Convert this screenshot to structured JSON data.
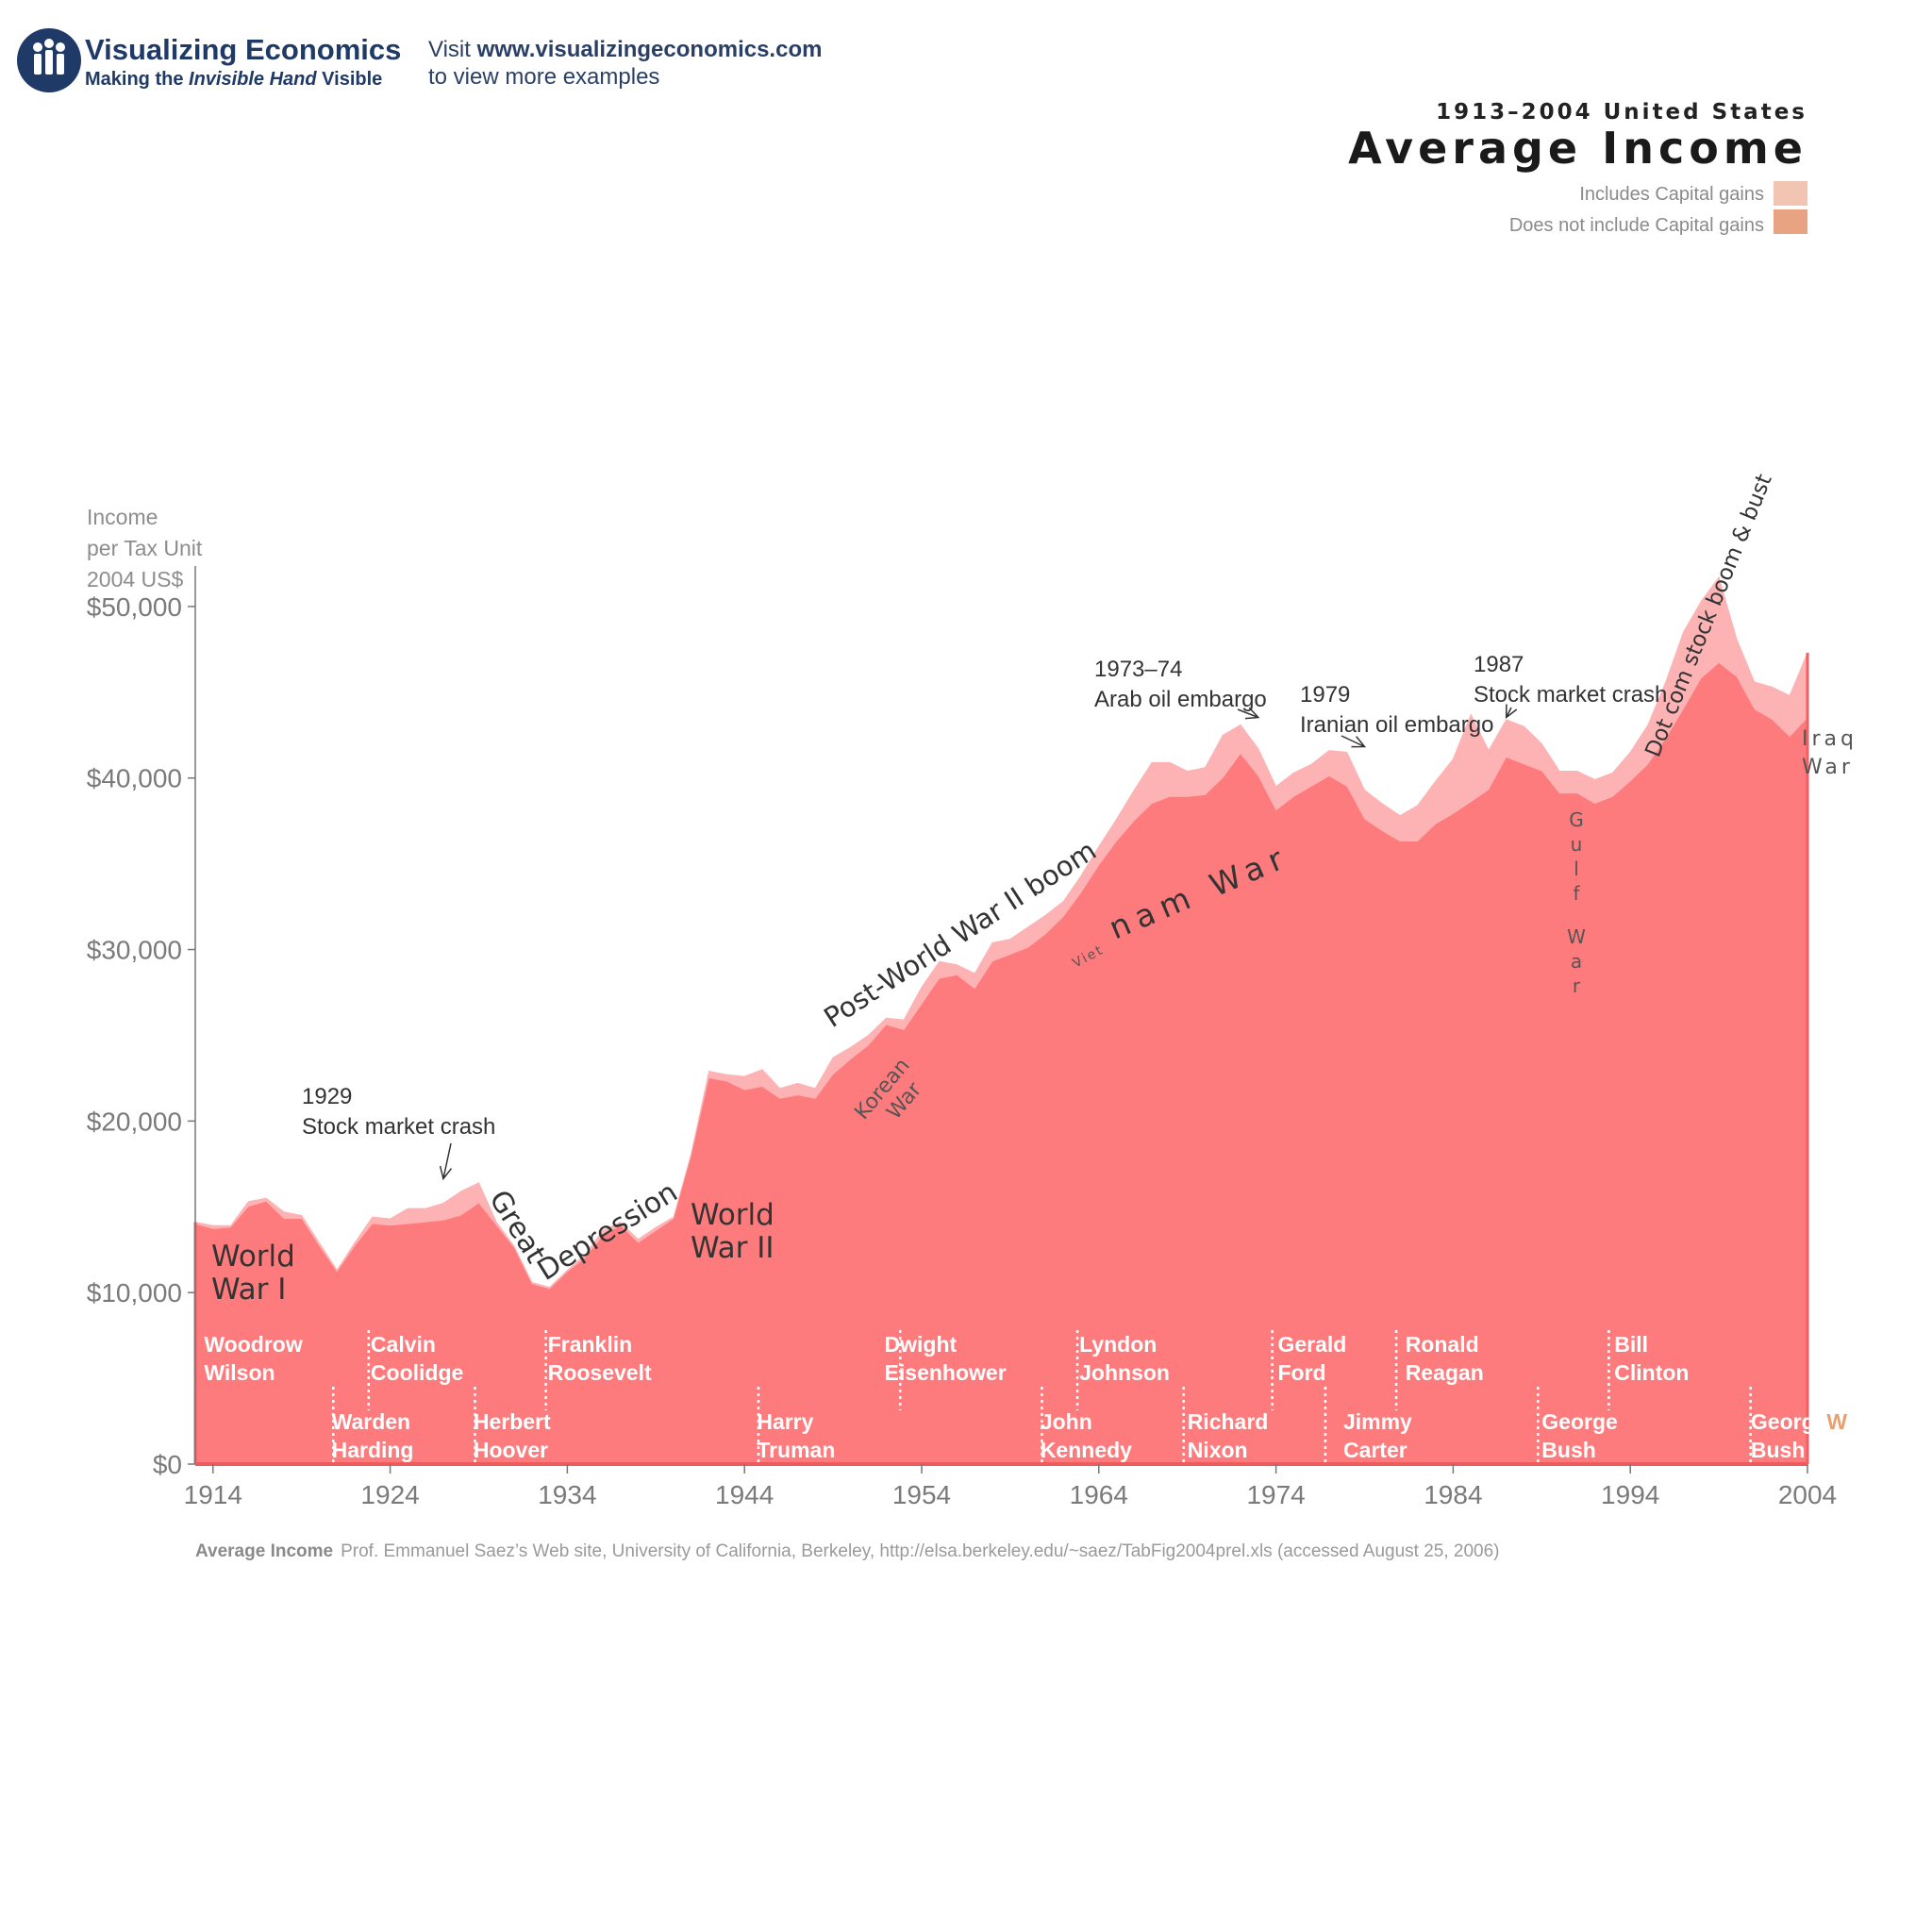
{
  "brand": {
    "name": "Visualizing Economics",
    "tagline_pre": "Making the ",
    "tagline_em": "Invisible Hand",
    "tagline_post": " Visible",
    "logo_icon": "people-circle-icon"
  },
  "visit": {
    "line1_pre": "Visit ",
    "line1_url": "www.visualizingeconomics.com",
    "line2": "to view more examples"
  },
  "header": {
    "subtitle": "1913–2004 United States",
    "title": "Average Income"
  },
  "legend": {
    "items": [
      {
        "label": "Includes Capital gains",
        "color": "#f2c4b2"
      },
      {
        "label": "Does not include Capital gains",
        "color": "#e8a383"
      }
    ]
  },
  "colors": {
    "with_gains_fill": "#fdb2b4",
    "without_gains_fill": "#fe7b7d",
    "edge": "#f16064",
    "axis": "#ef5a5e",
    "accent_w": "#e8a070"
  },
  "source": {
    "label": "Average Income",
    "text": "Prof. Emmanuel Saez’s Web site, University of California, Berkeley, http://elsa.berkeley.edu/~saez/TabFig2004prel.xls (accessed August  25, 2006)"
  },
  "chart_data": {
    "type": "area",
    "ylabel": [
      "Income",
      "per Tax Unit",
      "2004 US$"
    ],
    "ylim": [
      0,
      55000
    ],
    "xlim": [
      1913,
      2004
    ],
    "yticks": [
      {
        "value": 0,
        "label": "$0"
      },
      {
        "value": 10000,
        "label": "$10,000"
      },
      {
        "value": 20000,
        "label": "$20,000"
      },
      {
        "value": 30000,
        "label": "$30,000"
      },
      {
        "value": 40000,
        "label": "$40,000"
      },
      {
        "value": 50000,
        "label": "$50,000"
      }
    ],
    "xticks": [
      {
        "value": 1914,
        "label": "1914"
      },
      {
        "value": 1924,
        "label": "1924"
      },
      {
        "value": 1934,
        "label": "1934"
      },
      {
        "value": 1944,
        "label": "1944"
      },
      {
        "value": 1954,
        "label": "1954"
      },
      {
        "value": 1964,
        "label": "1964"
      },
      {
        "value": 1974,
        "label": "1974"
      },
      {
        "value": 1984,
        "label": "1984"
      },
      {
        "value": 1994,
        "label": "1994"
      },
      {
        "value": 2004,
        "label": "2004"
      }
    ],
    "x": [
      1913,
      1914,
      1915,
      1916,
      1917,
      1918,
      1919,
      1920,
      1921,
      1922,
      1923,
      1924,
      1925,
      1926,
      1927,
      1928,
      1929,
      1930,
      1931,
      1932,
      1933,
      1934,
      1935,
      1936,
      1937,
      1938,
      1939,
      1940,
      1941,
      1942,
      1943,
      1944,
      1945,
      1946,
      1947,
      1948,
      1949,
      1950,
      1951,
      1952,
      1953,
      1954,
      1955,
      1956,
      1957,
      1958,
      1959,
      1960,
      1961,
      1962,
      1963,
      1964,
      1965,
      1966,
      1967,
      1968,
      1969,
      1970,
      1971,
      1972,
      1973,
      1974,
      1975,
      1976,
      1977,
      1978,
      1979,
      1980,
      1981,
      1982,
      1983,
      1984,
      1985,
      1986,
      1987,
      1988,
      1989,
      1990,
      1991,
      1992,
      1993,
      1994,
      1995,
      1996,
      1997,
      1998,
      1999,
      2000,
      2001,
      2002,
      2003,
      2004
    ],
    "series": [
      {
        "name": "Includes Capital gains",
        "values": [
          14100,
          13900,
          13900,
          15300,
          15500,
          14700,
          14500,
          12900,
          11300,
          12900,
          14400,
          14300,
          14900,
          14900,
          15200,
          15900,
          16400,
          14100,
          12700,
          10600,
          10300,
          11300,
          12200,
          13600,
          14100,
          13100,
          13800,
          14400,
          18100,
          22900,
          22700,
          22600,
          23000,
          21900,
          22200,
          21900,
          23700,
          24300,
          25000,
          26000,
          25900,
          27800,
          29300,
          29100,
          28600,
          30400,
          30600,
          31300,
          32000,
          32800,
          34300,
          36000,
          37600,
          39300,
          40900,
          40900,
          40400,
          40600,
          42500,
          43100,
          41700,
          39500,
          40300,
          40800,
          41600,
          41500,
          39300,
          38500,
          37800,
          38400,
          39800,
          41100,
          43700,
          41600,
          43400,
          43000,
          42000,
          40400,
          40400,
          39900,
          40300,
          41500,
          43100,
          45600,
          48500,
          50300,
          51700,
          48100,
          45600,
          45300,
          44800,
          47300
        ]
      },
      {
        "name": "Does not include Capital gains",
        "values": [
          14000,
          13700,
          13800,
          15000,
          15300,
          14300,
          14300,
          12700,
          11200,
          12700,
          14000,
          13900,
          14000,
          14100,
          14200,
          14500,
          15200,
          13900,
          12600,
          10500,
          10200,
          11200,
          12000,
          13300,
          13900,
          12900,
          13600,
          14300,
          18000,
          22500,
          22300,
          21800,
          22000,
          21300,
          21500,
          21300,
          22700,
          23600,
          24400,
          25600,
          25300,
          26800,
          28300,
          28500,
          27700,
          29300,
          29700,
          30100,
          30900,
          31900,
          33300,
          34900,
          36300,
          37500,
          38500,
          38900,
          38900,
          39000,
          40000,
          41400,
          40100,
          38100,
          38900,
          39500,
          40100,
          39500,
          37600,
          36900,
          36300,
          36300,
          37300,
          37900,
          38600,
          39300,
          41200,
          40800,
          40400,
          39100,
          39100,
          38500,
          38900,
          39800,
          40800,
          42300,
          44000,
          45800,
          46700,
          45900,
          44000,
          43400,
          42400,
          43500
        ]
      }
    ],
    "annotations": [
      {
        "id": "1929",
        "lines": [
          "1929",
          "Stock market crash"
        ],
        "arrow_to": [
          1927,
          16300
        ]
      },
      {
        "id": "1973",
        "lines": [
          "1973–74",
          "Arab oil embargo"
        ],
        "arrow_to": [
          1973,
          43200
        ]
      },
      {
        "id": "1979",
        "lines": [
          "1979",
          "Iranian oil embargo"
        ],
        "arrow_to": [
          1979,
          41500
        ]
      },
      {
        "id": "1987",
        "lines": [
          "1987",
          "Stock market crash"
        ],
        "arrow_to": [
          1987,
          43200
        ]
      }
    ],
    "eras": [
      {
        "id": "ww1",
        "lines": [
          "World",
          "War I"
        ]
      },
      {
        "id": "great-depression",
        "lines": [
          "Great Depression"
        ]
      },
      {
        "id": "ww2",
        "lines": [
          "World",
          "War II"
        ]
      },
      {
        "id": "post-ww2",
        "lines": [
          "Post-World War II boom"
        ]
      },
      {
        "id": "korean",
        "lines": [
          "Korean",
          "War"
        ]
      },
      {
        "id": "vietnam-small",
        "lines": [
          "Viet"
        ]
      },
      {
        "id": "vietnam",
        "lines": [
          "nam War"
        ]
      },
      {
        "id": "gulf",
        "lines": [
          "Gulf War"
        ]
      },
      {
        "id": "dotcom",
        "lines": [
          "Dot com stock boom & bust"
        ]
      },
      {
        "id": "iraq",
        "lines": [
          "Iraq",
          "War"
        ]
      }
    ],
    "presidents": [
      {
        "lines": [
          "Woodrow",
          "Wilson"
        ],
        "x": 1913.5,
        "row": "top"
      },
      {
        "lines": [
          "Warden",
          "Harding"
        ],
        "x": 1920.7,
        "row": "bottom",
        "divider": 1921
      },
      {
        "lines": [
          "Calvin",
          "Coolidge"
        ],
        "x": 1922.9,
        "row": "top",
        "divider": 1923
      },
      {
        "lines": [
          "Herbert",
          "Hoover"
        ],
        "x": 1928.7,
        "row": "bottom",
        "divider": 1929
      },
      {
        "lines": [
          "Franklin",
          "Roosevelt"
        ],
        "x": 1932.9,
        "row": "top",
        "divider": 1933
      },
      {
        "lines": [
          "Harry",
          "Truman"
        ],
        "x": 1944.7,
        "row": "bottom",
        "divider": 1945
      },
      {
        "lines": [
          "Dwight",
          "Eisenhower"
        ],
        "x": 1951.9,
        "row": "top",
        "divider": 1953
      },
      {
        "lines": [
          "John",
          "Kennedy"
        ],
        "x": 1960.7,
        "row": "bottom",
        "divider": 1961
      },
      {
        "lines": [
          "Lyndon",
          "Johnson"
        ],
        "x": 1962.9,
        "row": "top",
        "divider": 1963
      },
      {
        "lines": [
          "Richard",
          "Nixon"
        ],
        "x": 1969.0,
        "row": "bottom",
        "divider": 1969
      },
      {
        "lines": [
          "Gerald",
          "Ford"
        ],
        "x": 1974.1,
        "row": "top",
        "divider": 1974
      },
      {
        "lines": [
          "Jimmy",
          "Carter"
        ],
        "x": 1977.8,
        "row": "bottom",
        "divider": 1977
      },
      {
        "lines": [
          "Ronald",
          "Reagan"
        ],
        "x": 1981.3,
        "row": "top",
        "divider": 1981
      },
      {
        "lines": [
          "George",
          "Bush"
        ],
        "x": 1989.0,
        "row": "bottom",
        "divider": 1989
      },
      {
        "lines": [
          "Bill",
          "Clinton"
        ],
        "x": 1993.1,
        "row": "top",
        "divider": 1993
      },
      {
        "lines": [
          "George",
          "Bush"
        ],
        "x": 2000.8,
        "row": "bottom",
        "divider": 2001,
        "suffix": "W"
      }
    ]
  }
}
